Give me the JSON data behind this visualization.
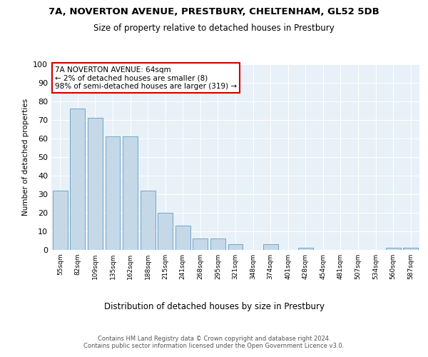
{
  "title_line1": "7A, NOVERTON AVENUE, PRESTBURY, CHELTENHAM, GL52 5DB",
  "title_line2": "Size of property relative to detached houses in Prestbury",
  "xlabel": "Distribution of detached houses by size in Prestbury",
  "ylabel": "Number of detached properties",
  "categories": [
    "55sqm",
    "82sqm",
    "109sqm",
    "135sqm",
    "162sqm",
    "188sqm",
    "215sqm",
    "241sqm",
    "268sqm",
    "295sqm",
    "321sqm",
    "348sqm",
    "374sqm",
    "401sqm",
    "428sqm",
    "454sqm",
    "481sqm",
    "507sqm",
    "534sqm",
    "560sqm",
    "587sqm"
  ],
  "values": [
    32,
    76,
    71,
    61,
    61,
    32,
    20,
    13,
    6,
    6,
    3,
    0,
    3,
    0,
    1,
    0,
    0,
    0,
    0,
    1,
    1
  ],
  "bar_color": "#c5d8e8",
  "bar_edge_color": "#6fa8c8",
  "background_color": "#e8f0f8",
  "annotation_box_color": "#cc0000",
  "annotation_text": "7A NOVERTON AVENUE: 64sqm\n← 2% of detached houses are smaller (8)\n98% of semi-detached houses are larger (319) →",
  "footer_text": "Contains HM Land Registry data © Crown copyright and database right 2024.\nContains public sector information licensed under the Open Government Licence v3.0.",
  "ylim": [
    0,
    100
  ],
  "yticks": [
    0,
    10,
    20,
    30,
    40,
    50,
    60,
    70,
    80,
    90,
    100
  ]
}
